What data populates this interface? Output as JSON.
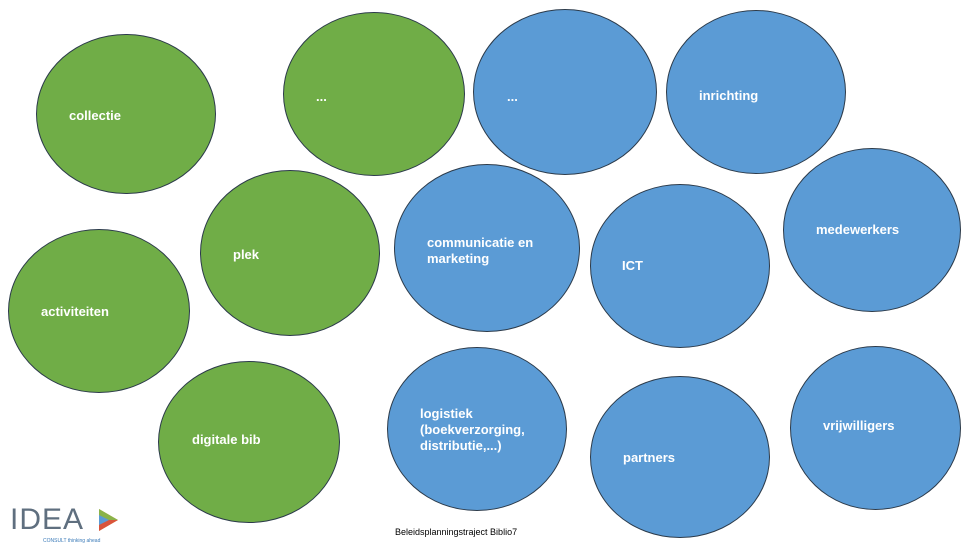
{
  "colors": {
    "green": "#70ad47",
    "blue": "#5b9bd5",
    "outline": "#2b3a4a"
  },
  "bubbles": {
    "collectie": "collectie",
    "dots_green": "...",
    "dots_blue": "...",
    "inrichting": "inrichting",
    "plek": "plek",
    "communicatie": "communicatie en\nmarketing",
    "ict": "ICT",
    "medewerkers": "medewerkers",
    "activiteiten": "activiteiten",
    "logistiek": "logistiek\n(boekverzorging,\ndistributie,...)",
    "digitale_bib": "digitale bib",
    "partners": "partners",
    "vrijwilligers": "vrijwilligers"
  },
  "footer": {
    "text": "Beleidsplanningstraject Biblio7"
  },
  "logo": {
    "name": "IDEA",
    "tagline": "CONSULT thinking ahead"
  }
}
